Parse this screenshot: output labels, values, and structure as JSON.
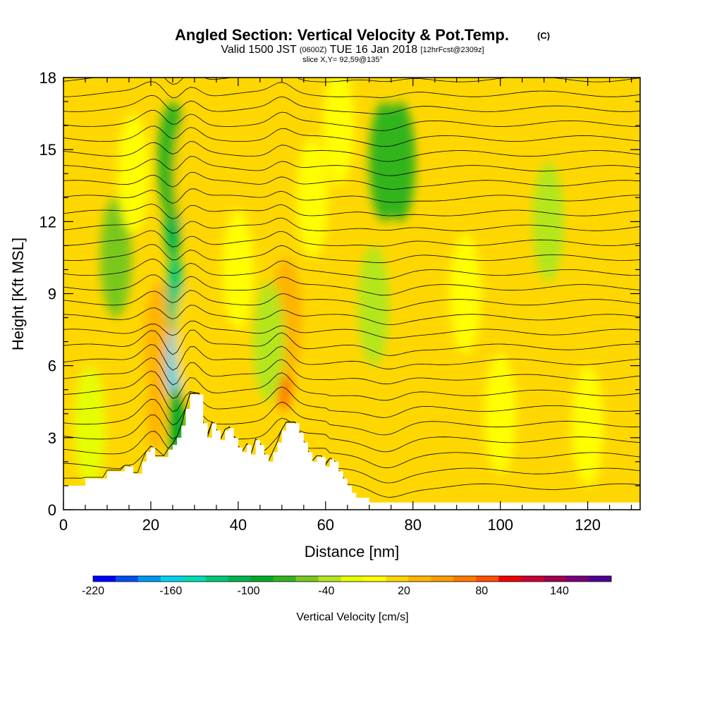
{
  "chart_data": {
    "type": "heatmap",
    "title": "Angled Section: Vertical Velocity & Pot.Temp.",
    "title_unit": "(C)",
    "subtitle": {
      "prefix": "Valid 1500 JST",
      "utc": "(0600Z)",
      "date": "TUE 16 Jan 2018",
      "forecast": "[12hrFcst@2309z]"
    },
    "slice_label": "slice X,Y= 92,59@135°",
    "xlabel": "Distance [nm]",
    "ylabel": "Height [Kft MSL]",
    "xlim": [
      0,
      132
    ],
    "ylim": [
      0,
      18
    ],
    "x_ticks": [
      "0",
      "20",
      "40",
      "60",
      "80",
      "100",
      "120"
    ],
    "y_ticks": [
      "0",
      "3",
      "6",
      "9",
      "12",
      "15",
      "18"
    ],
    "colorbar": {
      "label": "Vertical Velocity [cm/s]",
      "min": -220,
      "max": 180,
      "step": 20,
      "tick_labels": [
        "-220",
        "-160",
        "-100",
        "-40",
        "20",
        "80",
        "140"
      ],
      "colors": [
        "#0000ff",
        "#0050f0",
        "#0096f0",
        "#00d2f0",
        "#00dcb4",
        "#00c878",
        "#00b450",
        "#00aa28",
        "#32b41e",
        "#78c81e",
        "#b4e61e",
        "#e6ff00",
        "#ffff00",
        "#ffd700",
        "#ffb400",
        "#ff9b00",
        "#ff7800",
        "#ff5000",
        "#f00000",
        "#c80032",
        "#a00050",
        "#780078",
        "#500096"
      ]
    },
    "terrain": [
      [
        0,
        1.0
      ],
      [
        4,
        1.0
      ],
      [
        5,
        1.3
      ],
      [
        9,
        1.3
      ],
      [
        10,
        1.6
      ],
      [
        13,
        1.6
      ],
      [
        14,
        1.8
      ],
      [
        16,
        1.5
      ],
      [
        17,
        1.5
      ],
      [
        18,
        2.0
      ],
      [
        19,
        2.4
      ],
      [
        20,
        2.6
      ],
      [
        21,
        2.2
      ],
      [
        23,
        2.2
      ],
      [
        24,
        2.5
      ],
      [
        25,
        2.7
      ],
      [
        26,
        3.0
      ],
      [
        27,
        3.5
      ],
      [
        28,
        4.2
      ],
      [
        29,
        4.8
      ],
      [
        31,
        4.8
      ],
      [
        32,
        3.6
      ],
      [
        33,
        3.0
      ],
      [
        34,
        3.6
      ],
      [
        35,
        3.3
      ],
      [
        36,
        2.9
      ],
      [
        37,
        3.3
      ],
      [
        38,
        3.4
      ],
      [
        39,
        3.0
      ],
      [
        40,
        2.6
      ],
      [
        41,
        2.4
      ],
      [
        42,
        2.7
      ],
      [
        43,
        2.3
      ],
      [
        44,
        2.9
      ],
      [
        45,
        2.7
      ],
      [
        46,
        2.3
      ],
      [
        47,
        2.0
      ],
      [
        48,
        2.4
      ],
      [
        49,
        2.8
      ],
      [
        50,
        3.3
      ],
      [
        51,
        3.6
      ],
      [
        53,
        3.6
      ],
      [
        54,
        3.2
      ],
      [
        55,
        2.8
      ],
      [
        56,
        2.4
      ],
      [
        57,
        2.0
      ],
      [
        58,
        2.2
      ],
      [
        60,
        1.8
      ],
      [
        61,
        2.1
      ],
      [
        62,
        2.0
      ],
      [
        63,
        1.6
      ],
      [
        64,
        1.3
      ],
      [
        65,
        1.0
      ],
      [
        66,
        0.7
      ],
      [
        67,
        0.5
      ],
      [
        70,
        0.3
      ],
      [
        73,
        0.3
      ],
      [
        132,
        0.3
      ]
    ],
    "velocity_cells": [
      {
        "x": 21.5,
        "y": 5.5,
        "value": 110
      },
      {
        "x": 21.0,
        "y": 4.0,
        "value": 70
      },
      {
        "x": 22.0,
        "y": 7.0,
        "value": 60
      },
      {
        "x": 25.5,
        "y": 6.0,
        "value": -160
      },
      {
        "x": 25.5,
        "y": 9.0,
        "value": -120
      },
      {
        "x": 25.0,
        "y": 12.0,
        "value": -90
      },
      {
        "x": 25.0,
        "y": 14.5,
        "value": -60
      },
      {
        "x": 26.0,
        "y": 3.5,
        "value": -80
      },
      {
        "x": 29.0,
        "y": 7.0,
        "value": 50
      },
      {
        "x": 29.0,
        "y": 14.0,
        "value": 40
      },
      {
        "x": 12.0,
        "y": 10.5,
        "value": -40
      },
      {
        "x": 50.5,
        "y": 5.7,
        "value": 100
      },
      {
        "x": 51.0,
        "y": 8.0,
        "value": 60
      },
      {
        "x": 47.0,
        "y": 7.0,
        "value": -20
      },
      {
        "x": 73.5,
        "y": 14.5,
        "value": -60
      },
      {
        "x": 77.0,
        "y": 14.5,
        "value": -50
      },
      {
        "x": 71.0,
        "y": 8.5,
        "value": -20
      },
      {
        "x": 111.0,
        "y": 12.0,
        "value": -20
      },
      {
        "x": 86.0,
        "y": 16.5,
        "value": 40
      },
      {
        "x": 100.0,
        "y": 4.0,
        "value": 30
      },
      {
        "x": 120.0,
        "y": 3.5,
        "value": 30
      },
      {
        "x": 63.0,
        "y": 16.0,
        "value": 30
      },
      {
        "x": 40.0,
        "y": 10.0,
        "value": 30
      },
      {
        "x": 57.0,
        "y": 13.0,
        "value": 25
      },
      {
        "x": 16.0,
        "y": 14.0,
        "value": 25
      },
      {
        "x": 6.0,
        "y": 3.5,
        "value": 15
      },
      {
        "x": 92.0,
        "y": 9.0,
        "value": 20
      }
    ]
  }
}
